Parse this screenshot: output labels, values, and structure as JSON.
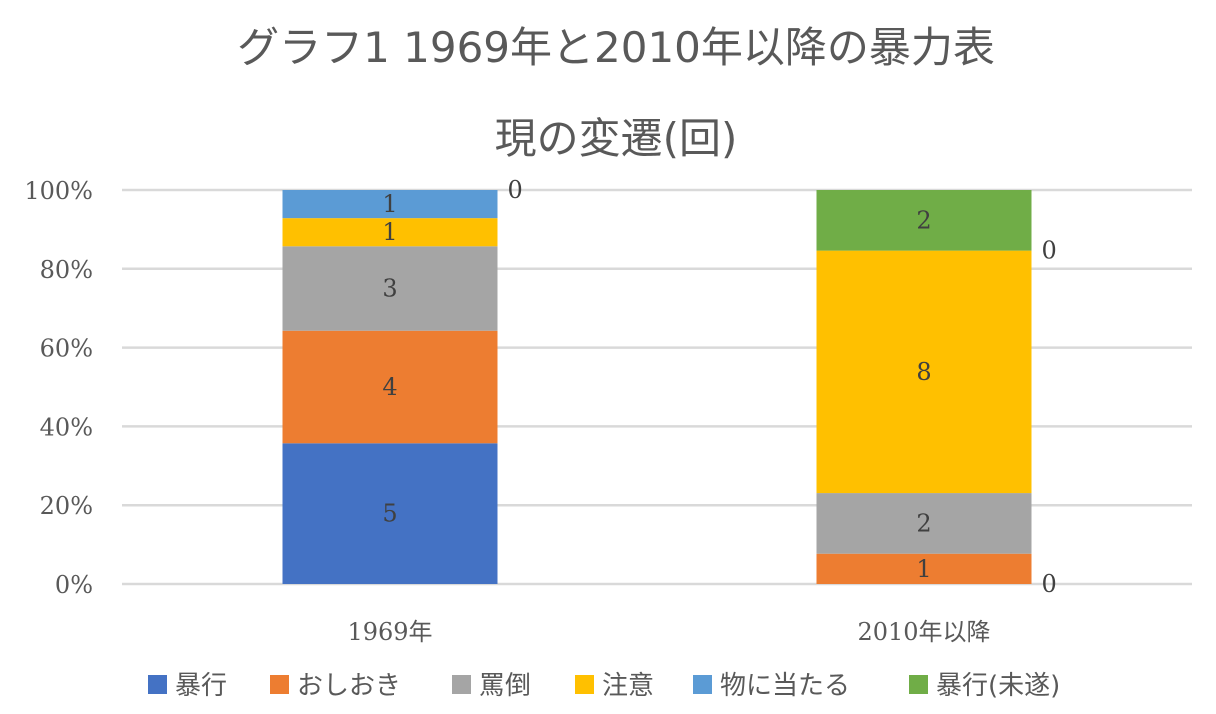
{
  "chart_data": {
    "type": "bar",
    "stacked": "percent",
    "title_lines": [
      "グラフ1  1969年と2010年以降の暴力表",
      "現の変遷(回)"
    ],
    "categories": [
      "1969年",
      "2010年以降"
    ],
    "series": [
      {
        "name": "暴行",
        "color": "#4472C4",
        "values": [
          5,
          0
        ]
      },
      {
        "name": "おしおき",
        "color": "#ED7D31",
        "values": [
          4,
          1
        ]
      },
      {
        "name": "罵倒",
        "color": "#A5A5A5",
        "values": [
          3,
          2
        ]
      },
      {
        "name": "注意",
        "color": "#FFC000",
        "values": [
          1,
          8
        ]
      },
      {
        "name": "物に当たる",
        "color": "#5B9BD5",
        "values": [
          1,
          0
        ]
      },
      {
        "name": "暴行(未遂)",
        "color": "#70AD47",
        "values": [
          0,
          2
        ]
      }
    ],
    "yticks": [
      "0%",
      "20%",
      "40%",
      "60%",
      "80%",
      "100%"
    ],
    "ylim": [
      0,
      100
    ],
    "grid": true,
    "legend_position": "bottom"
  }
}
